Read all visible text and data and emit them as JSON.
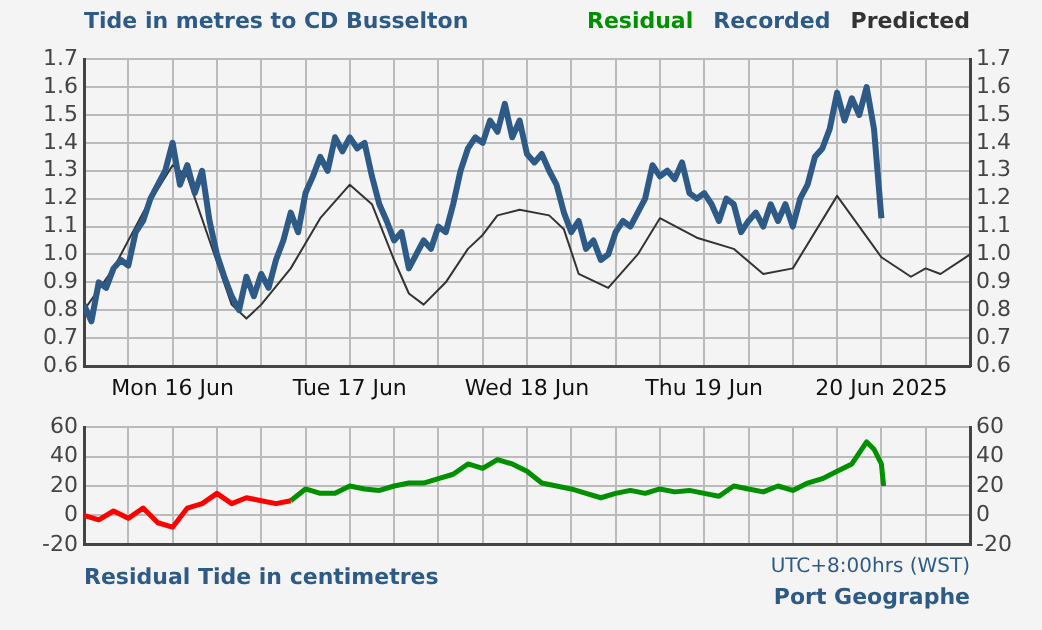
{
  "chart_data": [
    {
      "type": "line",
      "title": "Tide in metres to CD Busselton",
      "legend": "top right",
      "grid": true,
      "marker": "none",
      "xlim": [
        "2025-06-16T00:00",
        "2025-06-21T00:00"
      ],
      "xticks": [
        {
          "value": "2025-06-16T00:00",
          "label": null
        },
        {
          "value": "2025-06-16T06:00",
          "label": null
        },
        {
          "value": "2025-06-16T12:00",
          "label": "Mon 16 Jun"
        },
        {
          "value": "2025-06-16T18:00",
          "label": null
        },
        {
          "value": "2025-06-17T00:00",
          "label": null
        },
        {
          "value": "2025-06-17T06:00",
          "label": null
        },
        {
          "value": "2025-06-17T12:00",
          "label": "Tue 17 Jun"
        },
        {
          "value": "2025-06-17T18:00",
          "label": null
        },
        {
          "value": "2025-06-18T00:00",
          "label": null
        },
        {
          "value": "2025-06-18T06:00",
          "label": null
        },
        {
          "value": "2025-06-18T12:00",
          "label": "Wed 18 Jun"
        },
        {
          "value": "2025-06-18T18:00",
          "label": null
        },
        {
          "value": "2025-06-19T00:00",
          "label": null
        },
        {
          "value": "2025-06-19T06:00",
          "label": null
        },
        {
          "value": "2025-06-19T12:00",
          "label": "Thu 19 Jun"
        },
        {
          "value": "2025-06-19T18:00",
          "label": null
        },
        {
          "value": "2025-06-20T00:00",
          "label": null
        },
        {
          "value": "2025-06-20T06:00",
          "label": null
        },
        {
          "value": "2025-06-20T12:00",
          "label": "20 Jun 2025"
        },
        {
          "value": "2025-06-20T18:00",
          "label": null
        },
        {
          "value": "2025-06-21T00:00",
          "label": null
        }
      ],
      "ylim": [
        0.6,
        1.7
      ],
      "yticks": [
        0.6,
        0.7,
        0.8,
        0.9,
        {
          "value": 1,
          "label": "1.0"
        },
        1.1,
        1.2,
        1.3,
        1.4,
        1.5,
        1.6,
        1.7
      ],
      "y2lim": [
        0.6,
        1.7
      ],
      "y2ticks": [
        0.6,
        0.7,
        0.8,
        0.9,
        {
          "value": 1,
          "label": "1.0"
        },
        1.1,
        1.2,
        1.3,
        1.4,
        1.5,
        1.6,
        1.7
      ],
      "series": [
        {
          "name": "Recorded",
          "color": "#2e5a87",
          "x": [
            "2025-06-16T00:00",
            "2025-06-16T01:00",
            "2025-06-16T02:00",
            "2025-06-16T03:00",
            "2025-06-16T04:00",
            "2025-06-16T05:00",
            "2025-06-16T06:00",
            "2025-06-16T07:00",
            "2025-06-16T08:00",
            "2025-06-16T09:00",
            "2025-06-16T10:00",
            "2025-06-16T11:00",
            "2025-06-16T12:00",
            "2025-06-16T13:00",
            "2025-06-16T14:00",
            "2025-06-16T15:00",
            "2025-06-16T16:00",
            "2025-06-16T17:00",
            "2025-06-16T18:00",
            "2025-06-16T19:00",
            "2025-06-16T20:00",
            "2025-06-16T21:00",
            "2025-06-16T22:00",
            "2025-06-16T23:00",
            "2025-06-17T00:00",
            "2025-06-17T01:00",
            "2025-06-17T02:00",
            "2025-06-17T03:00",
            "2025-06-17T04:00",
            "2025-06-17T05:00",
            "2025-06-17T06:00",
            "2025-06-17T07:00",
            "2025-06-17T08:00",
            "2025-06-17T09:00",
            "2025-06-17T10:00",
            "2025-06-17T11:00",
            "2025-06-17T12:00",
            "2025-06-17T13:00",
            "2025-06-17T14:00",
            "2025-06-17T15:00",
            "2025-06-17T16:00",
            "2025-06-17T17:00",
            "2025-06-17T18:00",
            "2025-06-17T19:00",
            "2025-06-17T20:00",
            "2025-06-17T21:00",
            "2025-06-17T22:00",
            "2025-06-17T23:00",
            "2025-06-18T00:00",
            "2025-06-18T01:00",
            "2025-06-18T02:00",
            "2025-06-18T03:00",
            "2025-06-18T04:00",
            "2025-06-18T05:00",
            "2025-06-18T06:00",
            "2025-06-18T07:00",
            "2025-06-18T08:00",
            "2025-06-18T09:00",
            "2025-06-18T10:00",
            "2025-06-18T11:00",
            "2025-06-18T12:00",
            "2025-06-18T13:00",
            "2025-06-18T14:00",
            "2025-06-18T15:00",
            "2025-06-18T16:00",
            "2025-06-18T17:00",
            "2025-06-18T18:00",
            "2025-06-18T19:00",
            "2025-06-18T20:00",
            "2025-06-18T21:00",
            "2025-06-18T22:00",
            "2025-06-18T23:00",
            "2025-06-19T00:00",
            "2025-06-19T01:00",
            "2025-06-19T02:00",
            "2025-06-19T03:00",
            "2025-06-19T04:00",
            "2025-06-19T05:00",
            "2025-06-19T06:00",
            "2025-06-19T07:00",
            "2025-06-19T08:00",
            "2025-06-19T09:00",
            "2025-06-19T10:00",
            "2025-06-19T11:00",
            "2025-06-19T12:00",
            "2025-06-19T13:00",
            "2025-06-19T14:00",
            "2025-06-19T15:00",
            "2025-06-19T16:00",
            "2025-06-19T17:00",
            "2025-06-19T18:00",
            "2025-06-19T19:00",
            "2025-06-19T20:00",
            "2025-06-19T21:00",
            "2025-06-19T22:00",
            "2025-06-19T23:00",
            "2025-06-20T00:00",
            "2025-06-20T01:00",
            "2025-06-20T02:00",
            "2025-06-20T03:00",
            "2025-06-20T04:00",
            "2025-06-20T05:00",
            "2025-06-20T06:00",
            "2025-06-20T07:00",
            "2025-06-20T08:00",
            "2025-06-20T09:00",
            "2025-06-20T10:00",
            "2025-06-20T11:00",
            "2025-06-20T12:00"
          ],
          "values": [
            0.82,
            0.76,
            0.9,
            0.88,
            0.95,
            0.98,
            0.96,
            1.08,
            1.12,
            1.2,
            1.25,
            1.3,
            1.4,
            1.25,
            1.32,
            1.22,
            1.3,
            1.12,
            1.0,
            0.92,
            0.85,
            0.8,
            0.92,
            0.85,
            0.93,
            0.88,
            0.98,
            1.05,
            1.15,
            1.08,
            1.22,
            1.28,
            1.35,
            1.3,
            1.42,
            1.37,
            1.42,
            1.38,
            1.4,
            1.28,
            1.18,
            1.12,
            1.05,
            1.08,
            0.95,
            1.0,
            1.05,
            1.02,
            1.1,
            1.08,
            1.18,
            1.3,
            1.38,
            1.42,
            1.4,
            1.48,
            1.44,
            1.54,
            1.42,
            1.48,
            1.36,
            1.33,
            1.36,
            1.3,
            1.25,
            1.15,
            1.08,
            1.12,
            1.02,
            1.05,
            0.98,
            1.0,
            1.08,
            1.12,
            1.1,
            1.15,
            1.2,
            1.32,
            1.28,
            1.3,
            1.27,
            1.33,
            1.22,
            1.2,
            1.22,
            1.18,
            1.12,
            1.2,
            1.18,
            1.08,
            1.12,
            1.15,
            1.1,
            1.18,
            1.12,
            1.18,
            1.1,
            1.2,
            1.25,
            1.35,
            1.38,
            1.45,
            1.58,
            1.48,
            1.56,
            1.5,
            1.6,
            1.45,
            1.13
          ]
        },
        {
          "name": "Predicted",
          "color": "#333333",
          "x": [
            "2025-06-16T00:00",
            "2025-06-16T04:00",
            "2025-06-16T08:00",
            "2025-06-16T12:00",
            "2025-06-16T14:00",
            "2025-06-16T17:00",
            "2025-06-16T20:00",
            "2025-06-16T22:00",
            "2025-06-17T00:00",
            "2025-06-17T04:00",
            "2025-06-17T08:00",
            "2025-06-17T12:00",
            "2025-06-17T15:00",
            "2025-06-17T18:00",
            "2025-06-17T20:00",
            "2025-06-17T22:00",
            "2025-06-18T01:00",
            "2025-06-18T04:00",
            "2025-06-18T06:00",
            "2025-06-18T08:00",
            "2025-06-18T11:00",
            "2025-06-18T15:00",
            "2025-06-18T17:00",
            "2025-06-18T19:00",
            "2025-06-18T23:00",
            "2025-06-19T03:00",
            "2025-06-19T06:00",
            "2025-06-19T11:00",
            "2025-06-19T16:00",
            "2025-06-19T20:00",
            "2025-06-20T00:00",
            "2025-06-20T06:00",
            "2025-06-20T12:00",
            "2025-06-20T16:00",
            "2025-06-20T18:00",
            "2025-06-20T20:00",
            "2025-06-21T00:00"
          ],
          "values": [
            0.8,
            0.95,
            1.15,
            1.32,
            1.28,
            1.05,
            0.82,
            0.77,
            0.82,
            0.95,
            1.13,
            1.25,
            1.18,
            0.98,
            0.86,
            0.82,
            0.9,
            1.02,
            1.07,
            1.14,
            1.16,
            1.14,
            1.09,
            0.93,
            0.88,
            1.0,
            1.13,
            1.06,
            1.02,
            0.93,
            0.95,
            1.21,
            0.99,
            0.92,
            0.95,
            0.93,
            1.0
          ]
        }
      ]
    },
    {
      "type": "line",
      "xlabel": "Residual Tide in centimetres",
      "annotations": [
        "UTC+8:00hrs (WST)",
        "Port Geographe"
      ],
      "grid": true,
      "marker": "none",
      "tick_labels": "y",
      "xlim": [
        "2025-06-16T00:00",
        "2025-06-21T00:00"
      ],
      "xticks": [
        {
          "value": "2025-06-16T00:00",
          "label": null
        },
        {
          "value": "2025-06-16T06:00",
          "label": null
        },
        {
          "value": "2025-06-16T12:00",
          "label": null
        },
        {
          "value": "2025-06-16T18:00",
          "label": null
        },
        {
          "value": "2025-06-17T00:00",
          "label": null
        },
        {
          "value": "2025-06-17T06:00",
          "label": null
        },
        {
          "value": "2025-06-17T12:00",
          "label": null
        },
        {
          "value": "2025-06-17T18:00",
          "label": null
        },
        {
          "value": "2025-06-18T00:00",
          "label": null
        },
        {
          "value": "2025-06-18T06:00",
          "label": null
        },
        {
          "value": "2025-06-18T12:00",
          "label": null
        },
        {
          "value": "2025-06-18T18:00",
          "label": null
        },
        {
          "value": "2025-06-19T00:00",
          "label": null
        },
        {
          "value": "2025-06-19T06:00",
          "label": null
        },
        {
          "value": "2025-06-19T12:00",
          "label": null
        },
        {
          "value": "2025-06-19T18:00",
          "label": null
        },
        {
          "value": "2025-06-20T00:00",
          "label": null
        },
        {
          "value": "2025-06-20T06:00",
          "label": null
        },
        {
          "value": "2025-06-20T12:00",
          "label": null
        },
        {
          "value": "2025-06-20T18:00",
          "label": null
        },
        {
          "value": "2025-06-21T00:00",
          "label": null
        }
      ],
      "ylim": [
        -20,
        60
      ],
      "yticks": [
        -20,
        0,
        20,
        40,
        60
      ],
      "y2lim": [
        -20,
        60
      ],
      "y2ticks": [
        -20,
        0,
        20,
        40,
        60
      ],
      "series": [
        {
          "color": "#ff0000",
          "x": [
            "2025-06-16T00:00",
            "2025-06-16T02:00",
            "2025-06-16T04:00",
            "2025-06-16T06:00",
            "2025-06-16T08:00",
            "2025-06-16T10:00",
            "2025-06-16T12:00",
            "2025-06-16T14:00",
            "2025-06-16T16:00",
            "2025-06-16T18:00",
            "2025-06-16T20:00",
            "2025-06-16T22:00",
            "2025-06-17T00:00",
            "2025-06-17T02:00",
            "2025-06-17T04:00"
          ],
          "values": [
            0,
            -3,
            3,
            -2,
            5,
            -5,
            -8,
            5,
            8,
            15,
            8,
            12,
            10,
            8,
            10
          ]
        },
        {
          "name": "Residual",
          "color": "#009000",
          "x": [
            "2025-06-17T04:00",
            "2025-06-17T06:00",
            "2025-06-17T08:00",
            "2025-06-17T10:00",
            "2025-06-17T12:00",
            "2025-06-17T14:00",
            "2025-06-17T16:00",
            "2025-06-17T18:00",
            "2025-06-17T20:00",
            "2025-06-17T22:00",
            "2025-06-18T00:00",
            "2025-06-18T02:00",
            "2025-06-18T04:00",
            "2025-06-18T06:00",
            "2025-06-18T08:00",
            "2025-06-18T10:00",
            "2025-06-18T12:00",
            "2025-06-18T14:00",
            "2025-06-18T16:00",
            "2025-06-18T18:00",
            "2025-06-18T20:00",
            "2025-06-18T22:00",
            "2025-06-19T00:00",
            "2025-06-19T02:00",
            "2025-06-19T04:00",
            "2025-06-19T06:00",
            "2025-06-19T08:00",
            "2025-06-19T10:00",
            "2025-06-19T12:00",
            "2025-06-19T14:00",
            "2025-06-19T16:00",
            "2025-06-19T18:00",
            "2025-06-19T20:00",
            "2025-06-19T22:00",
            "2025-06-20T00:00",
            "2025-06-20T02:00",
            "2025-06-20T04:00",
            "2025-06-20T06:00",
            "2025-06-20T08:00",
            "2025-06-20T10:00",
            "2025-06-20T11:00",
            "2025-06-20T12:00",
            "2025-06-20T12:18"
          ],
          "values": [
            10,
            18,
            15,
            15,
            20,
            18,
            17,
            20,
            22,
            22,
            25,
            28,
            35,
            32,
            38,
            35,
            30,
            22,
            20,
            18,
            15,
            12,
            15,
            17,
            15,
            18,
            16,
            17,
            15,
            13,
            20,
            18,
            16,
            20,
            17,
            22,
            25,
            30,
            35,
            50,
            45,
            35,
            20
          ]
        }
      ]
    }
  ]
}
